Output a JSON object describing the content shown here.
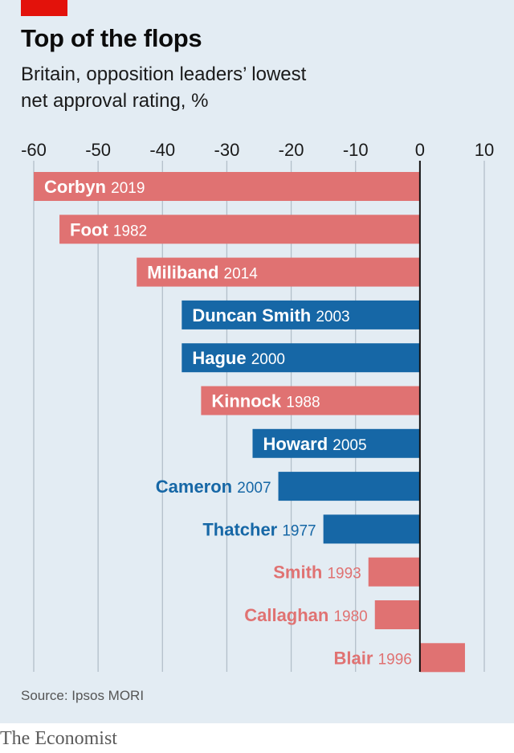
{
  "header": {
    "title": "Top of the flops",
    "subtitle_line1": "Britain, opposition leaders’ lowest",
    "subtitle_line2": "net approval rating, %"
  },
  "footer": {
    "source": "Source: Ipsos MORI",
    "brand": "The Economist"
  },
  "colors": {
    "labour": "#e07272",
    "conservative": "#1667a6",
    "background": "#e3ecf3",
    "accent": "#e3120b"
  },
  "chart_data": {
    "type": "bar",
    "orientation": "horizontal",
    "xlim": [
      -60,
      10
    ],
    "ticks": [
      -60,
      -50,
      -40,
      -30,
      -20,
      -10,
      0,
      10
    ],
    "tick_labels": [
      "-60",
      "-50",
      "-40",
      "-30",
      "-20",
      "-10",
      "0",
      "10"
    ],
    "grid": true,
    "bars": [
      {
        "name": "Corbyn",
        "year": "2019",
        "value": -60,
        "party": "labour"
      },
      {
        "name": "Foot",
        "year": "1982",
        "value": -56,
        "party": "labour"
      },
      {
        "name": "Miliband",
        "year": "2014",
        "value": -44,
        "party": "labour"
      },
      {
        "name": "Duncan Smith",
        "year": "2003",
        "value": -37,
        "party": "conservative"
      },
      {
        "name": "Hague",
        "year": "2000",
        "value": -37,
        "party": "conservative"
      },
      {
        "name": "Kinnock",
        "year": "1988",
        "value": -34,
        "party": "labour"
      },
      {
        "name": "Howard",
        "year": "2005",
        "value": -26,
        "party": "conservative"
      },
      {
        "name": "Cameron",
        "year": "2007",
        "value": -22,
        "party": "conservative"
      },
      {
        "name": "Thatcher",
        "year": "1977",
        "value": -15,
        "party": "conservative"
      },
      {
        "name": "Smith",
        "year": "1993",
        "value": -8,
        "party": "labour"
      },
      {
        "name": "Callaghan",
        "year": "1980",
        "value": -7,
        "party": "labour"
      },
      {
        "name": "Blair",
        "year": "1996",
        "value": 7,
        "party": "labour"
      }
    ]
  }
}
